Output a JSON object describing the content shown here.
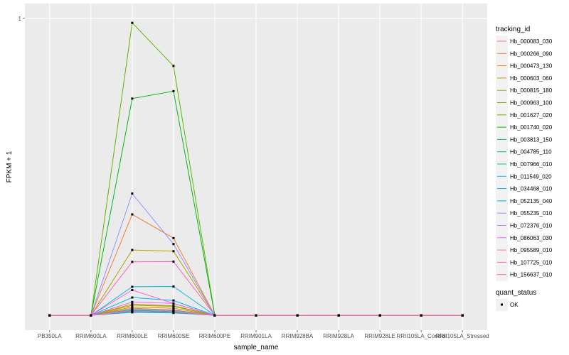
{
  "chart_data": {
    "type": "line",
    "xlabel": "sample_name",
    "ylabel": "FPKM + 1",
    "categories": [
      "PB350LA",
      "RRIM600LA",
      "RRIM600LE",
      "RRIM600SE",
      "RRIM600PE",
      "RRIM901LA",
      "RRIM928BA",
      "RRIM928LA",
      "RRIM928LE",
      "RRII105LA_Control",
      "RRII105LA_Stressed"
    ],
    "y_ticks": [
      {
        "value": 1,
        "label": "1"
      }
    ],
    "ylim": [
      -0.05,
      1.05
    ],
    "grid": true,
    "legend_placement": "right",
    "legend_title": "tracking_id",
    "shape_legend": {
      "title": "quant_status",
      "entries": [
        "OK"
      ]
    },
    "series": [
      {
        "name": "Hb_000083_030",
        "color": "#F8766D",
        "values": [
          0,
          0,
          0.024,
          0.018,
          0,
          0,
          0,
          0,
          0,
          0,
          0
        ]
      },
      {
        "name": "Hb_000266_090",
        "color": "#EC8239",
        "values": [
          0,
          0,
          0.34,
          0.26,
          0,
          0,
          0,
          0,
          0,
          0,
          0
        ]
      },
      {
        "name": "Hb_000473_130",
        "color": "#DB8E00",
        "values": [
          0,
          0,
          0.038,
          0.032,
          0,
          0,
          0,
          0,
          0,
          0,
          0
        ]
      },
      {
        "name": "Hb_000603_060",
        "color": "#C79800",
        "values": [
          0,
          0,
          0.028,
          0.024,
          0,
          0,
          0,
          0,
          0,
          0,
          0
        ]
      },
      {
        "name": "Hb_000815_180",
        "color": "#AEA200",
        "values": [
          0,
          0,
          0.22,
          0.216,
          0,
          0,
          0,
          0,
          0,
          0,
          0
        ]
      },
      {
        "name": "Hb_000963_100",
        "color": "#8FAA00",
        "values": [
          0,
          0,
          0.034,
          0.03,
          0,
          0,
          0,
          0,
          0,
          0,
          0
        ]
      },
      {
        "name": "Hb_001627_020",
        "color": "#64B200",
        "values": [
          0,
          0,
          0.985,
          0.84,
          0,
          0,
          0,
          0,
          0,
          0,
          0
        ]
      },
      {
        "name": "Hb_001740_020",
        "color": "#00B81B",
        "values": [
          0,
          0,
          0.73,
          0.755,
          0,
          0,
          0,
          0,
          0,
          0,
          0
        ]
      },
      {
        "name": "Hb_003813_150",
        "color": "#00BD5C",
        "values": [
          0,
          0,
          0.02,
          0.016,
          0,
          0,
          0,
          0,
          0,
          0,
          0
        ]
      },
      {
        "name": "Hb_004785_110",
        "color": "#00C08E",
        "values": [
          0,
          0,
          0.016,
          0.013,
          0,
          0,
          0,
          0,
          0,
          0,
          0
        ]
      },
      {
        "name": "Hb_007966_010",
        "color": "#00C1B7",
        "values": [
          0,
          0,
          0.01,
          0.008,
          0,
          0,
          0,
          0,
          0,
          0,
          0
        ]
      },
      {
        "name": "Hb_011549_020",
        "color": "#00BDDC",
        "values": [
          0,
          0,
          0.096,
          0.097,
          0,
          0,
          0,
          0,
          0,
          0,
          0
        ]
      },
      {
        "name": "Hb_034468_010",
        "color": "#00B5F9",
        "values": [
          0,
          0,
          0.06,
          0.05,
          0,
          0,
          0,
          0,
          0,
          0,
          0
        ]
      },
      {
        "name": "Hb_052135_040",
        "color": "#00A8FF",
        "values": [
          0,
          0,
          0.012,
          0.01,
          0,
          0,
          0,
          0,
          0,
          0,
          0
        ]
      },
      {
        "name": "Hb_055235_010",
        "color": "#9590FF",
        "values": [
          0,
          0,
          0.41,
          0.24,
          0,
          0,
          0,
          0,
          0,
          0,
          0
        ]
      },
      {
        "name": "Hb_072376_010",
        "color": "#C77CFF",
        "values": [
          0,
          0,
          0.018,
          0.015,
          0,
          0,
          0,
          0,
          0,
          0,
          0
        ]
      },
      {
        "name": "Hb_086063_030",
        "color": "#E76BF3",
        "values": [
          0,
          0,
          0.045,
          0.04,
          0,
          0,
          0,
          0,
          0,
          0,
          0
        ]
      },
      {
        "name": "Hb_095589_010",
        "color": "#FA62DB",
        "values": [
          0,
          0,
          0.085,
          0.04,
          0,
          0,
          0,
          0,
          0,
          0,
          0
        ]
      },
      {
        "name": "Hb_107725_010",
        "color": "#FF62BC",
        "values": [
          0,
          0,
          0.18,
          0.181,
          0,
          0,
          0,
          0,
          0,
          0,
          0
        ]
      },
      {
        "name": "Hb_156637_010",
        "color": "#FF6C91",
        "values": [
          0,
          0,
          0.014,
          0.011,
          0,
          0,
          0,
          0,
          0,
          0,
          0
        ]
      }
    ]
  }
}
